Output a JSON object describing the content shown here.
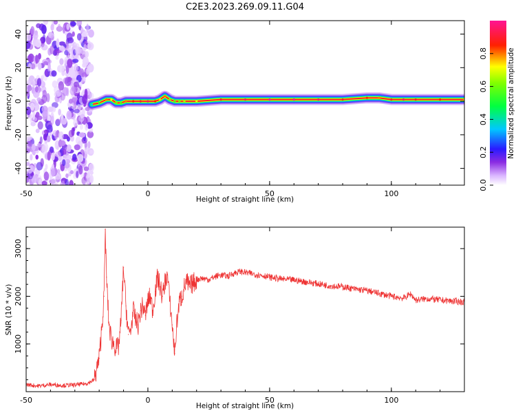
{
  "figure": {
    "title": "C2E3.2023.269.09.11.G04"
  },
  "chart_data": [
    {
      "type": "heatmap",
      "title": "C2E3.2023.269.09.11.G04",
      "xlabel": "Height of straight line (km)",
      "ylabel": "Frequency (Hz)",
      "xlim": [
        -50,
        130
      ],
      "ylim": [
        -50,
        48
      ],
      "xticks": [
        -50,
        0,
        50,
        100
      ],
      "yticks": [
        -40,
        -20,
        0,
        20,
        40
      ],
      "colorbar": {
        "label": "Normalized spectral amplitude",
        "range": [
          0,
          1
        ],
        "ticks": [
          0.0,
          0.2,
          0.4,
          0.6,
          0.8
        ],
        "colormap": "rainbow (white-violet-blue-cyan-green-yellow-red-magenta)"
      },
      "noise_region_x": [
        -50,
        -23
      ],
      "ridge": {
        "x": [
          -23,
          -20,
          -17,
          -15,
          -13,
          -11,
          -9,
          -6,
          -3,
          0,
          3,
          5,
          7,
          9,
          11,
          13,
          15,
          20,
          30,
          40,
          50,
          60,
          70,
          80,
          90,
          95,
          100,
          105,
          110,
          120,
          130
        ],
        "freq": [
          -2,
          -1,
          1,
          1,
          -1,
          -1,
          0,
          0,
          0,
          0,
          0,
          1,
          3,
          1,
          0,
          0,
          0,
          0,
          1,
          1,
          1,
          1,
          1,
          1,
          2,
          2,
          1,
          1,
          1,
          1,
          1
        ],
        "amplitude": [
          0.35,
          0.55,
          0.8,
          0.7,
          0.6,
          0.55,
          0.8,
          0.85,
          0.9,
          0.95,
          0.85,
          0.75,
          0.8,
          0.6,
          0.55,
          0.6,
          0.65,
          0.7,
          0.9,
          0.95,
          1.0,
          1.0,
          0.95,
          0.9,
          0.85,
          0.8,
          0.9,
          0.95,
          0.9,
          0.85,
          0.75
        ]
      }
    },
    {
      "type": "line",
      "xlabel": "Height of straight line (km)",
      "ylabel": "SNR (10 * v/v)",
      "xlim": [
        -50,
        130
      ],
      "ylim": [
        0,
        3450
      ],
      "xticks": [
        -50,
        0,
        50,
        100
      ],
      "yticks": [
        1000,
        2000,
        3000
      ],
      "color": "#ee3333",
      "series": [
        {
          "x": [
            -50,
            -45,
            -40,
            -35,
            -30,
            -25,
            -22,
            -20,
            -19,
            -18,
            -17.5,
            -17,
            -16,
            -15,
            -14,
            -13,
            -12,
            -11,
            -10,
            -9,
            -8,
            -7,
            -6,
            -5,
            -4,
            -3,
            -2,
            -1,
            0,
            1,
            2,
            3,
            4,
            5,
            6,
            7,
            8,
            9,
            10,
            11,
            12,
            13,
            14,
            15,
            16,
            17,
            18,
            19,
            20,
            22,
            25,
            28,
            30,
            33,
            35,
            38,
            40,
            42,
            45,
            48,
            50,
            55,
            60,
            65,
            70,
            75,
            80,
            85,
            90,
            95,
            100,
            105,
            108,
            110,
            115,
            120,
            125,
            130
          ],
          "y": [
            150,
            120,
            150,
            130,
            140,
            170,
            250,
            700,
            1300,
            2000,
            3400,
            2400,
            1400,
            1100,
            1000,
            900,
            950,
            1500,
            2600,
            1800,
            1200,
            1300,
            1700,
            1500,
            1400,
            1700,
            1800,
            1600,
            1900,
            2000,
            1700,
            2100,
            2400,
            2200,
            2000,
            2300,
            2450,
            1900,
            1400,
            800,
            1500,
            1900,
            2000,
            2200,
            2300,
            2200,
            2250,
            2300,
            2350,
            2380,
            2350,
            2420,
            2450,
            2420,
            2480,
            2520,
            2500,
            2480,
            2450,
            2430,
            2400,
            2360,
            2340,
            2300,
            2260,
            2220,
            2200,
            2150,
            2120,
            2060,
            2000,
            1960,
            2050,
            1920,
            1950,
            1920,
            1900,
            1880
          ]
        }
      ]
    }
  ]
}
